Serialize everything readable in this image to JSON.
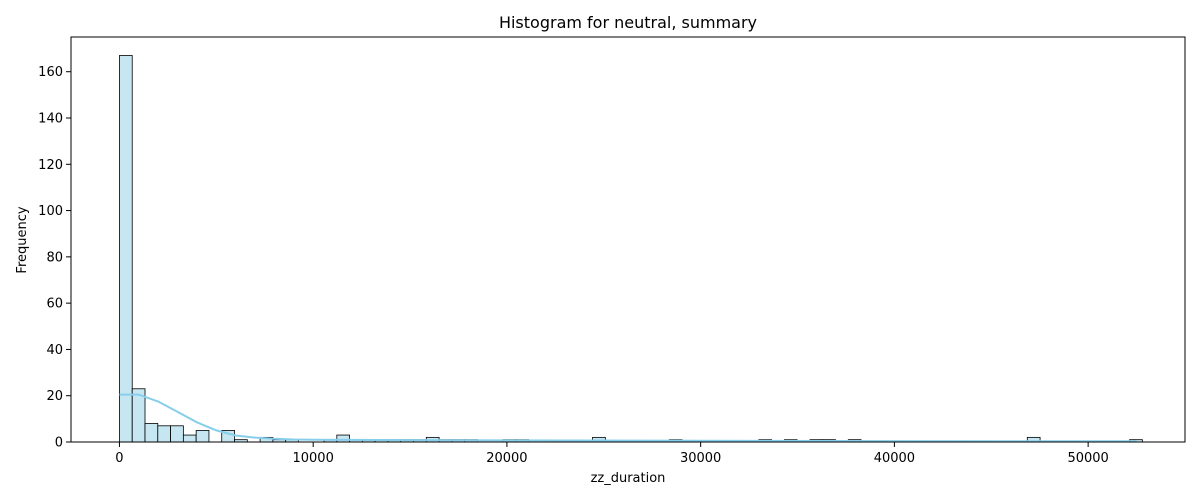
{
  "chart_data": {
    "type": "bar",
    "title": "Histogram for neutral, summary",
    "xlabel": "zz_duration",
    "ylabel": "Frequency",
    "xlim": [
      -2500,
      55000
    ],
    "ylim": [
      0,
      175
    ],
    "xticks": [
      0,
      10000,
      20000,
      30000,
      40000,
      50000
    ],
    "yticks": [
      0,
      20,
      40,
      60,
      80,
      100,
      120,
      140,
      160
    ],
    "bin_width": 660,
    "bins": [
      {
        "x": 0,
        "count": 167
      },
      {
        "x": 660,
        "count": 23
      },
      {
        "x": 1320,
        "count": 8
      },
      {
        "x": 1980,
        "count": 7
      },
      {
        "x": 2640,
        "count": 7
      },
      {
        "x": 3300,
        "count": 3
      },
      {
        "x": 3960,
        "count": 5
      },
      {
        "x": 5280,
        "count": 5
      },
      {
        "x": 5940,
        "count": 1
      },
      {
        "x": 7260,
        "count": 2
      },
      {
        "x": 7920,
        "count": 1
      },
      {
        "x": 8580,
        "count": 1
      },
      {
        "x": 10560,
        "count": 1
      },
      {
        "x": 11220,
        "count": 3
      },
      {
        "x": 11880,
        "count": 1
      },
      {
        "x": 12540,
        "count": 1
      },
      {
        "x": 13200,
        "count": 1
      },
      {
        "x": 13860,
        "count": 1
      },
      {
        "x": 14520,
        "count": 1
      },
      {
        "x": 15180,
        "count": 1
      },
      {
        "x": 15840,
        "count": 2
      },
      {
        "x": 16500,
        "count": 1
      },
      {
        "x": 17160,
        "count": 1
      },
      {
        "x": 17820,
        "count": 1
      },
      {
        "x": 19800,
        "count": 1
      },
      {
        "x": 20460,
        "count": 1
      },
      {
        "x": 24420,
        "count": 2
      },
      {
        "x": 28380,
        "count": 1
      },
      {
        "x": 33000,
        "count": 1
      },
      {
        "x": 34320,
        "count": 1
      },
      {
        "x": 35640,
        "count": 1
      },
      {
        "x": 36300,
        "count": 1
      },
      {
        "x": 37620,
        "count": 1
      },
      {
        "x": 46860,
        "count": 2
      },
      {
        "x": 52140,
        "count": 1
      }
    ],
    "kde": {
      "x": [
        0,
        1000,
        2000,
        3000,
        4000,
        5000,
        6000,
        7000,
        8000,
        9000,
        10000,
        12000,
        15000,
        20000,
        30000,
        40000,
        50000,
        52500
      ],
      "y": [
        20.5,
        20.5,
        17.5,
        13,
        8.5,
        5,
        2.8,
        1.9,
        1.4,
        1.1,
        1.0,
        0.9,
        0.8,
        0.7,
        0.5,
        0.4,
        0.3,
        0.3
      ]
    },
    "grid": false,
    "bar_color": "#c6e6f2",
    "bar_edge_color": "#000000",
    "kde_color": "#87ceeb"
  }
}
